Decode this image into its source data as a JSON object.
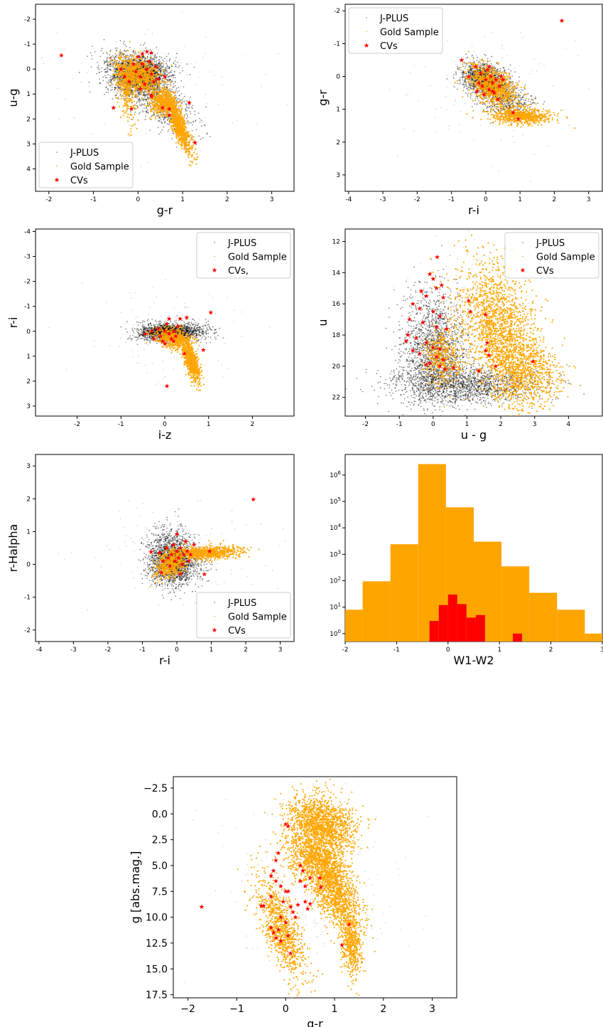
{
  "colors": {
    "jplus": "#555555",
    "gold": "#ffa500",
    "cv": "#ff0000",
    "axis": "#000000"
  },
  "chart_data": [
    {
      "id": "p1",
      "type": "scatter",
      "xlabel": "g-r",
      "ylabel": "u-g",
      "xlim": [
        -2.3,
        3.5
      ],
      "ylim": [
        4.9,
        -2.6
      ],
      "y_inverted": true,
      "xticks": [
        -2,
        -1,
        0,
        1,
        2,
        3
      ],
      "yticks": [
        -2,
        -1,
        0,
        1,
        2,
        3,
        4
      ],
      "legend": {
        "position": "lower-left",
        "entries": [
          "J-PLUS",
          "Gold Sample",
          "CVs"
        ]
      },
      "series": [
        {
          "name": "J-PLUS",
          "marker": "dot"
        },
        {
          "name": "Gold Sample",
          "marker": "dot"
        },
        {
          "name": "CVs",
          "marker": "star",
          "points": [
            [
              -1.72,
              -0.55
            ],
            [
              -0.55,
              1.55
            ],
            [
              -0.38,
              0.0
            ],
            [
              -0.3,
              0.3
            ],
            [
              -0.2,
              0.5
            ],
            [
              -0.1,
              -0.2
            ],
            [
              -0.05,
              0.1
            ],
            [
              0.0,
              -0.5
            ],
            [
              0.05,
              0.3
            ],
            [
              0.1,
              -0.2
            ],
            [
              0.15,
              0.6
            ],
            [
              0.2,
              0.0
            ],
            [
              0.25,
              -0.3
            ],
            [
              0.3,
              0.2
            ],
            [
              0.35,
              0.5
            ],
            [
              0.4,
              -0.1
            ],
            [
              0.45,
              0.4
            ],
            [
              0.1,
              -0.6
            ],
            [
              0.2,
              -0.7
            ],
            [
              0.3,
              -0.65
            ],
            [
              0.05,
              0.8
            ],
            [
              0.3,
              1.05
            ],
            [
              0.3,
              1.1
            ],
            [
              0.55,
              1.55
            ],
            [
              0.7,
              1.6
            ],
            [
              0.7,
              1.85
            ],
            [
              1.15,
              1.35
            ],
            [
              1.28,
              2.95
            ],
            [
              -0.15,
              1.6
            ],
            [
              0.6,
              0.3
            ]
          ]
        }
      ]
    },
    {
      "id": "p2",
      "type": "scatter",
      "xlabel": "r-i",
      "ylabel": "g-r",
      "xlim": [
        -4.1,
        3.4
      ],
      "ylim": [
        3.5,
        -2.2
      ],
      "y_inverted": true,
      "xticks": [
        -4,
        -3,
        -2,
        -1,
        0,
        1,
        2,
        3
      ],
      "yticks": [
        -2,
        -1,
        0,
        1,
        2,
        3
      ],
      "legend": {
        "position": "upper-left",
        "entries": [
          "J-PLUS",
          "Gold Sample",
          "CVs"
        ]
      },
      "series": [
        {
          "name": "J-PLUS",
          "marker": "dot"
        },
        {
          "name": "Gold Sample",
          "marker": "dot"
        },
        {
          "name": "CVs",
          "marker": "star",
          "points": [
            [
              -0.7,
              -0.5
            ],
            [
              -0.5,
              0.0
            ],
            [
              -0.3,
              -0.3
            ],
            [
              -0.2,
              0.2
            ],
            [
              -0.15,
              -0.1
            ],
            [
              -0.1,
              0.3
            ],
            [
              0.0,
              0.1
            ],
            [
              0.05,
              -0.2
            ],
            [
              0.1,
              0.4
            ],
            [
              0.15,
              0.0
            ],
            [
              0.2,
              0.2
            ],
            [
              0.25,
              0.5
            ],
            [
              0.3,
              0.1
            ],
            [
              0.35,
              0.7
            ],
            [
              0.4,
              0.3
            ],
            [
              0.5,
              0.1
            ],
            [
              -0.05,
              0.55
            ],
            [
              0.1,
              -0.3
            ],
            [
              0.2,
              0.45
            ],
            [
              0.8,
              1.1
            ],
            [
              0.95,
              1.3
            ],
            [
              2.22,
              -1.7
            ],
            [
              -0.25,
              0.45
            ],
            [
              0.45,
              0.0
            ]
          ]
        }
      ]
    },
    {
      "id": "p3",
      "type": "scatter",
      "xlabel": "i-z",
      "ylabel": "r-i",
      "xlim": [
        -2.95,
        2.95
      ],
      "ylim": [
        3.4,
        -4.1
      ],
      "y_inverted": true,
      "xticks": [
        -2,
        -1,
        0,
        1,
        2
      ],
      "yticks": [
        -4,
        -3,
        -2,
        -1,
        0,
        1,
        2,
        3
      ],
      "legend": {
        "position": "upper-right",
        "entries": [
          "J-PLUS",
          "Gold Sample",
          "CVs,"
        ]
      },
      "series": [
        {
          "name": "J-PLUS",
          "marker": "dot"
        },
        {
          "name": "Gold Sample",
          "marker": "dot"
        },
        {
          "name": "CVs,",
          "marker": "star",
          "points": [
            [
              -0.45,
              0.1
            ],
            [
              -0.3,
              0.0
            ],
            [
              -0.25,
              0.3
            ],
            [
              -0.15,
              -0.1
            ],
            [
              -0.1,
              0.2
            ],
            [
              -0.05,
              0.4
            ],
            [
              0.0,
              0.0
            ],
            [
              0.05,
              -0.3
            ],
            [
              0.1,
              0.1
            ],
            [
              0.15,
              0.3
            ],
            [
              0.2,
              0.0
            ],
            [
              0.25,
              0.2
            ],
            [
              0.3,
              -0.2
            ],
            [
              0.0,
              0.5
            ],
            [
              0.1,
              -0.5
            ],
            [
              0.35,
              -0.5
            ],
            [
              0.5,
              -0.55
            ],
            [
              0.45,
              0.9
            ],
            [
              0.88,
              0.75
            ],
            [
              1.05,
              -0.75
            ],
            [
              0.05,
              2.2
            ],
            [
              0.2,
              0.4
            ]
          ]
        }
      ]
    },
    {
      "id": "p4",
      "type": "scatter",
      "xlabel": "u - g",
      "ylabel": "u",
      "xlim": [
        -2.6,
        5.0
      ],
      "ylim": [
        23.2,
        11.2
      ],
      "y_inverted": true,
      "xticks": [
        -2,
        -1,
        0,
        1,
        2,
        3,
        4
      ],
      "yticks": [
        12,
        14,
        16,
        18,
        20,
        22
      ],
      "legend": {
        "position": "upper-right",
        "entries": [
          "J-PLUS",
          "Gold Sample",
          "CVs"
        ]
      },
      "series": [
        {
          "name": "J-PLUS",
          "marker": "dot"
        },
        {
          "name": "Gold Sample",
          "marker": "dot"
        },
        {
          "name": "CVs",
          "marker": "star",
          "points": [
            [
              0.12,
              13.0
            ],
            [
              -0.1,
              14.1
            ],
            [
              0.0,
              14.4
            ],
            [
              0.25,
              14.8
            ],
            [
              -0.35,
              15.2
            ],
            [
              -0.2,
              15.5
            ],
            [
              0.1,
              15.0
            ],
            [
              0.3,
              15.6
            ],
            [
              -0.6,
              16.0
            ],
            [
              -0.4,
              16.3
            ],
            [
              0.0,
              16.5
            ],
            [
              0.2,
              16.8
            ],
            [
              -0.7,
              17.0
            ],
            [
              -0.3,
              17.2
            ],
            [
              0.1,
              17.5
            ],
            [
              0.4,
              17.6
            ],
            [
              -0.75,
              18.0
            ],
            [
              -0.5,
              18.2
            ],
            [
              -0.2,
              18.5
            ],
            [
              0.0,
              18.8
            ],
            [
              0.2,
              18.9
            ],
            [
              -0.6,
              19.0
            ],
            [
              -0.4,
              19.2
            ],
            [
              0.1,
              19.4
            ],
            [
              0.3,
              19.6
            ],
            [
              -0.1,
              19.8
            ],
            [
              0.2,
              20.0
            ],
            [
              0.6,
              20.1
            ],
            [
              0.35,
              20.2
            ],
            [
              -0.2,
              19.9
            ],
            [
              1.05,
              15.8
            ],
            [
              1.1,
              16.5
            ],
            [
              1.55,
              16.7
            ],
            [
              1.6,
              18.5
            ],
            [
              1.55,
              19.0
            ],
            [
              1.65,
              19.3
            ],
            [
              1.85,
              20.0
            ],
            [
              2.95,
              19.7
            ],
            [
              1.35,
              20.3
            ],
            [
              -0.8,
              18.4
            ]
          ]
        }
      ]
    },
    {
      "id": "p5",
      "type": "scatter",
      "xlabel": "r-i",
      "ylabel": "r-Halpha",
      "xlim": [
        -4.1,
        3.4
      ],
      "ylim": [
        -2.35,
        3.35
      ],
      "y_inverted": false,
      "xticks": [
        -4,
        -3,
        -2,
        -1,
        0,
        1,
        2,
        3
      ],
      "yticks": [
        -2,
        -1,
        0,
        1,
        2,
        3
      ],
      "legend": {
        "position": "lower-right",
        "entries": [
          "J-PLUS",
          "Gold Sample",
          "CVs"
        ]
      },
      "series": [
        {
          "name": "J-PLUS",
          "marker": "dot"
        },
        {
          "name": "Gold Sample",
          "marker": "dot"
        },
        {
          "name": "CVs",
          "marker": "star",
          "points": [
            [
              -0.75,
              0.38
            ],
            [
              -0.5,
              0.35
            ],
            [
              -0.4,
              0.1
            ],
            [
              -0.3,
              0.5
            ],
            [
              -0.25,
              0.2
            ],
            [
              -0.2,
              -0.05
            ],
            [
              -0.15,
              0.3
            ],
            [
              -0.1,
              0.6
            ],
            [
              -0.05,
              0.1
            ],
            [
              0.0,
              0.4
            ],
            [
              0.0,
              0.92
            ],
            [
              0.05,
              0.2
            ],
            [
              0.1,
              0.5
            ],
            [
              0.15,
              0.0
            ],
            [
              0.2,
              0.3
            ],
            [
              0.25,
              0.7
            ],
            [
              0.3,
              0.4
            ],
            [
              0.4,
              0.3
            ],
            [
              0.5,
              0.6
            ],
            [
              0.8,
              -0.3
            ],
            [
              2.22,
              1.98
            ],
            [
              -0.45,
              -0.25
            ],
            [
              0.95,
              0.4
            ],
            [
              0.1,
              -0.3
            ],
            [
              0.35,
              0.1
            ]
          ]
        }
      ]
    },
    {
      "id": "p6",
      "type": "bar",
      "xlabel": "W1-W2",
      "ylabel": "",
      "xlim": [
        -2,
        3
      ],
      "ylog": true,
      "ylim": [
        0.5,
        6000000
      ],
      "xticks": [
        -2,
        -1,
        0,
        1,
        2,
        3
      ],
      "yticks": [
        1,
        10,
        100,
        1000,
        10000,
        100000,
        1000000
      ],
      "ytick_labels": [
        "10^0",
        "10^1",
        "10^2",
        "10^3",
        "10^4",
        "10^5",
        "10^6"
      ],
      "series": [
        {
          "name": "",
          "color": "gold",
          "bins": [
            -2.0,
            -1.66,
            -1.12,
            -0.58,
            -0.04,
            0.5,
            1.04,
            1.58,
            2.12,
            2.66,
            3.2
          ],
          "counts": [
            8,
            95,
            2400,
            2600000,
            60000,
            3000,
            350,
            35,
            8,
            1
          ]
        },
        {
          "name": "",
          "color": "cv",
          "bins": [
            -0.36,
            -0.18,
            0.0,
            0.18,
            0.36,
            0.54,
            0.72,
            0.9,
            1.08,
            1.26,
            1.44
          ],
          "counts": [
            3,
            12,
            30,
            13,
            4,
            5,
            0,
            0,
            0,
            1
          ]
        }
      ]
    },
    {
      "id": "p7",
      "type": "scatter",
      "xlabel": "g-r",
      "ylabel": "g [abs.mag.]",
      "xlim": [
        -2.3,
        3.5
      ],
      "ylim": [
        17.8,
        -3.6
      ],
      "y_inverted": true,
      "xticks": [
        -2,
        -1,
        0,
        1,
        2,
        3
      ],
      "yticks": [
        -2.5,
        0.0,
        2.5,
        5.0,
        7.5,
        10.0,
        12.5,
        15.0,
        17.5
      ],
      "ytick_labels": [
        "−2.5",
        "0.0",
        "2.5",
        "5.0",
        "7.5",
        "10.0",
        "12.5",
        "15.0",
        "17.5"
      ],
      "xtick_labels": [
        "−2",
        "−1",
        "0",
        "1",
        "2",
        "3"
      ],
      "series": [
        {
          "name": "Gold Sample",
          "marker": "dot"
        },
        {
          "name": "CVs",
          "marker": "star",
          "points": [
            [
              -1.72,
              9.0
            ],
            [
              -0.5,
              8.9
            ],
            [
              -0.45,
              8.9
            ],
            [
              -0.3,
              11.0
            ],
            [
              -0.25,
              11.5
            ],
            [
              -0.2,
              12.0
            ],
            [
              -0.15,
              11.2
            ],
            [
              -0.1,
              12.3
            ],
            [
              0.0,
              10.5
            ],
            [
              0.05,
              11.8
            ],
            [
              0.1,
              13.5
            ],
            [
              0.0,
              1.0
            ],
            [
              0.05,
              1.2
            ],
            [
              -0.15,
              3.8
            ],
            [
              -0.2,
              4.5
            ],
            [
              -0.25,
              5.5
            ],
            [
              -0.3,
              6.0
            ],
            [
              -0.2,
              6.5
            ],
            [
              -0.1,
              7.0
            ],
            [
              0.0,
              7.5
            ],
            [
              -0.3,
              8.0
            ],
            [
              -0.05,
              8.5
            ],
            [
              0.1,
              9.0
            ],
            [
              0.15,
              9.5
            ],
            [
              0.2,
              10.0
            ],
            [
              0.25,
              8.8
            ],
            [
              0.3,
              5.0
            ],
            [
              0.35,
              5.5
            ],
            [
              0.3,
              6.5
            ],
            [
              0.4,
              7.0
            ],
            [
              0.4,
              8.5
            ],
            [
              0.45,
              9.2
            ],
            [
              0.5,
              8.7
            ],
            [
              0.5,
              6.2
            ],
            [
              0.7,
              6.2
            ],
            [
              0.72,
              7.1
            ],
            [
              1.3,
              10.7
            ],
            [
              1.15,
              12.7
            ],
            [
              -0.1,
              10.0
            ],
            [
              0.05,
              7.5
            ]
          ]
        }
      ]
    }
  ]
}
